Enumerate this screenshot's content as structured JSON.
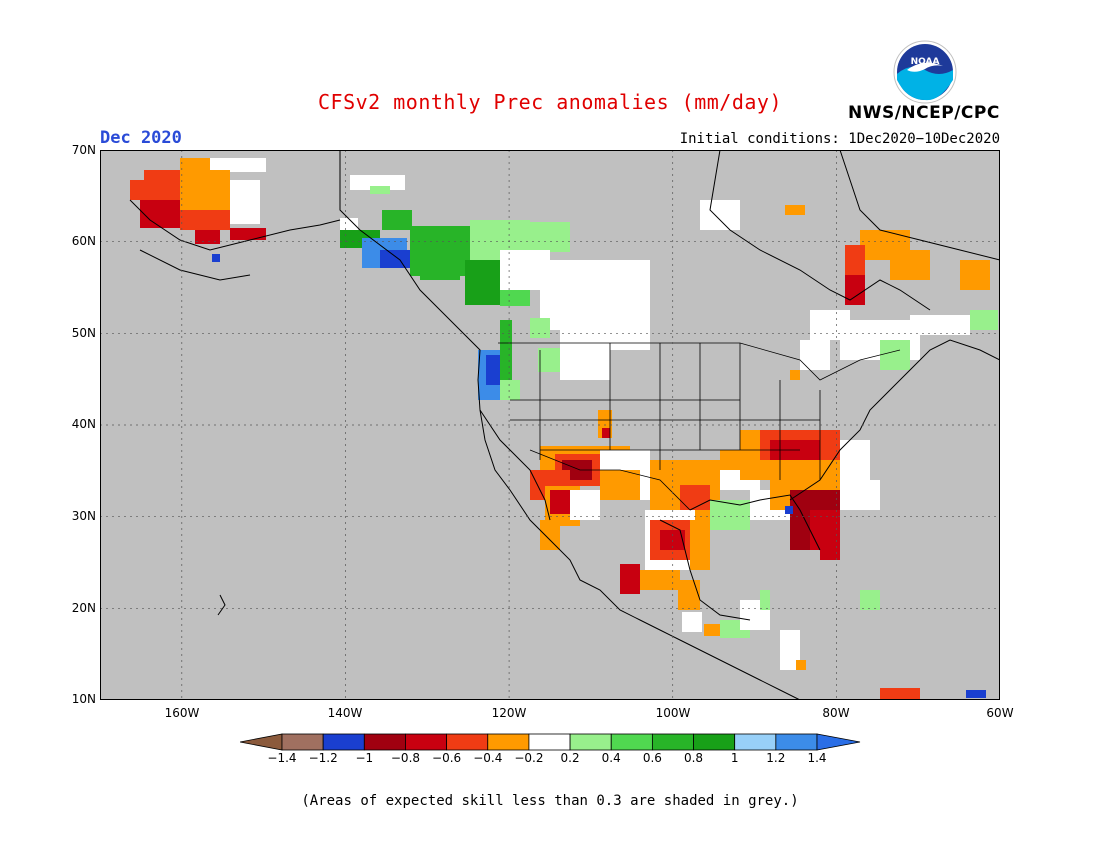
{
  "header": {
    "title": "CFSv2 monthly Prec anomalies (mm/day)",
    "month": "Dec 2020",
    "initial_conditions": "Initial conditions: 1Dec2020−10Dec2020",
    "agency": "NWS/NCEP/CPC",
    "logo_text": "NOAA"
  },
  "map": {
    "lat_labels": [
      "70N",
      "60N",
      "50N",
      "40N",
      "30N",
      "20N",
      "10N"
    ],
    "lon_labels": [
      "160W",
      "140W",
      "120W",
      "100W",
      "80W",
      "60W"
    ],
    "lon_range": [
      -170,
      -60
    ],
    "lat_range": [
      10,
      70
    ]
  },
  "colorbar": {
    "ticks": [
      "−1.4",
      "−1.2",
      "−1",
      "−0.8",
      "−0.6",
      "−0.4",
      "−0.2",
      "0.2",
      "0.4",
      "0.6",
      "0.8",
      "1",
      "1.2",
      "1.4"
    ],
    "colors": [
      "#8b5a3c",
      "#a07060",
      "#1a3fd0",
      "#a00010",
      "#c80010",
      "#f03c14",
      "#ff9a00",
      "#ffffff",
      "#98f08c",
      "#50d850",
      "#28b428",
      "#18a018",
      "#98d0f8",
      "#3c8ce8",
      "#2a6ee6"
    ]
  },
  "footer": {
    "note": "(Areas of expected skill less than 0.3 are shaded in grey.)"
  }
}
